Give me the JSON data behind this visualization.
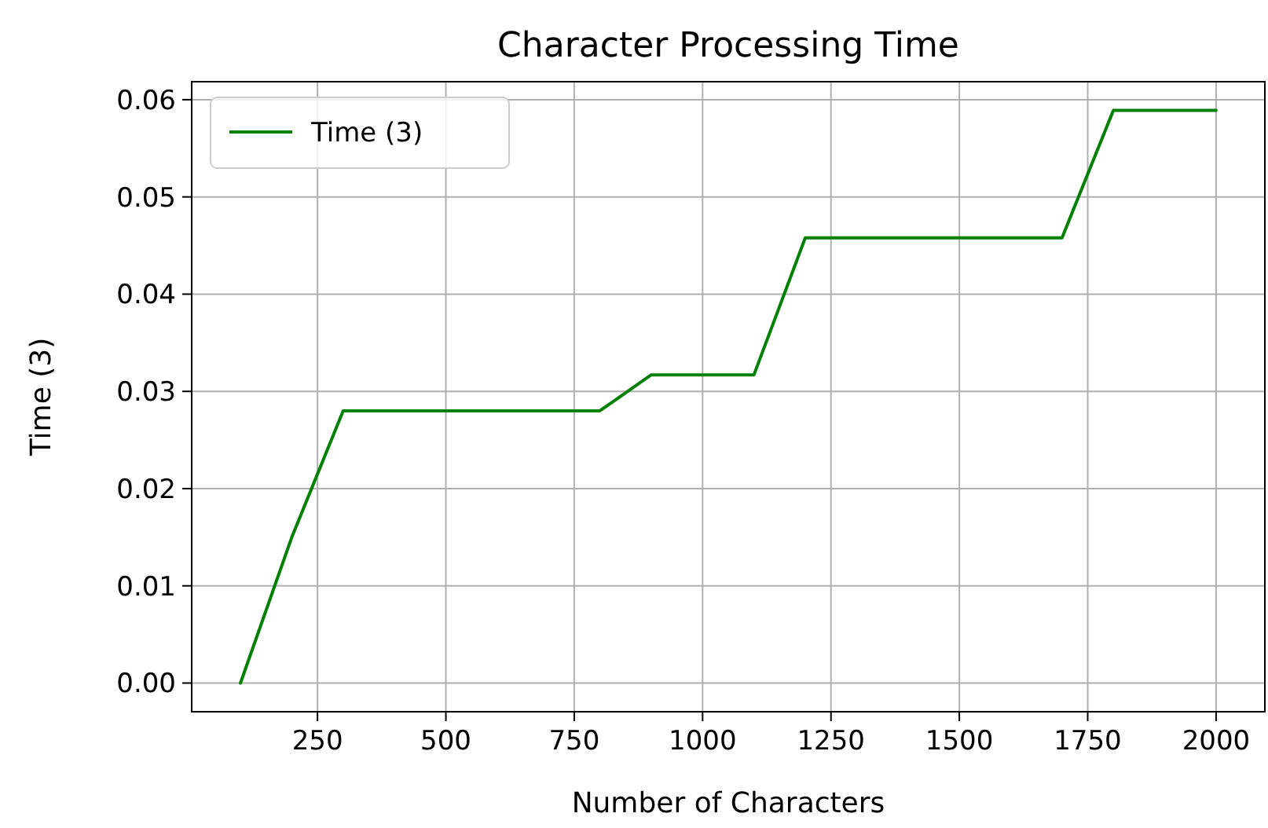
{
  "chart_data": {
    "type": "line",
    "title": "Character Processing Time",
    "xlabel": "Number of Characters",
    "ylabel": "Time (3)",
    "x": [
      100,
      200,
      300,
      400,
      500,
      600,
      700,
      800,
      900,
      1000,
      1100,
      1200,
      1300,
      1400,
      1500,
      1600,
      1700,
      1800,
      1900,
      2000
    ],
    "series": [
      {
        "name": "Time (3)",
        "color": "#008000",
        "values": [
          0,
          0.015,
          0.028,
          0.028,
          0.028,
          0.028,
          0.028,
          0.028,
          0.0317,
          0.0317,
          0.0317,
          0.0458,
          0.0458,
          0.0458,
          0.0458,
          0.0458,
          0.0458,
          0.0589,
          0.0589,
          0.0589
        ]
      }
    ],
    "xlim": [
      5,
      2095
    ],
    "xticks": [
      250,
      500,
      750,
      1000,
      1250,
      1500,
      1750,
      2000
    ],
    "ylim": [
      -0.00295,
      0.06185
    ],
    "yticks": [
      {
        "value": 0,
        "label": "0.00"
      },
      {
        "value": 0.01,
        "label": "0.01"
      },
      {
        "value": 0.02,
        "label": "0.02"
      },
      {
        "value": 0.03,
        "label": "0.03"
      },
      {
        "value": 0.04,
        "label": "0.04"
      },
      {
        "value": 0.05,
        "label": "0.05"
      },
      {
        "value": 0.06,
        "label": "0.06"
      }
    ],
    "grid": true,
    "legend": "top left"
  }
}
